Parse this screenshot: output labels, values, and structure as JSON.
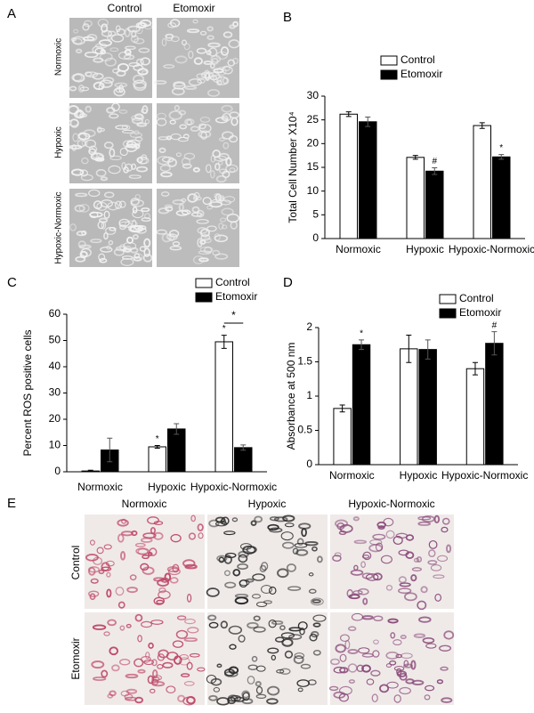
{
  "panel_a": {
    "letter": "A",
    "columns": [
      "Control",
      "Etomoxir"
    ],
    "rows": [
      "Normoxic",
      "Hypoxic",
      "Hypoxic-Normoxic"
    ]
  },
  "panel_e": {
    "letter": "E",
    "columns": [
      "Normoxic",
      "Hypoxic",
      "Hypoxic-Normoxic"
    ],
    "rows": [
      "Control",
      "Etomoxir"
    ]
  },
  "chart_data": [
    {
      "type": "bar",
      "panel": "B",
      "y_label": "Total Cell Number X10⁴",
      "categories": [
        "Normoxic",
        "Hypoxic",
        "Hypoxic-Normoxic"
      ],
      "series": [
        {
          "name": "Control",
          "color": "#ffffff",
          "values": [
            26.2,
            17.1,
            23.8
          ],
          "errors": [
            0.5,
            0.4,
            0.6
          ],
          "markers": [
            null,
            null,
            null
          ]
        },
        {
          "name": "Etomoxir",
          "color": "#000000",
          "values": [
            24.6,
            14.2,
            17.2
          ],
          "errors": [
            1.0,
            0.7,
            0.5
          ],
          "markers": [
            null,
            "#",
            "*"
          ]
        }
      ],
      "ylim": [
        0,
        30
      ],
      "yticks": [
        0,
        5,
        10,
        15,
        20,
        25,
        30
      ]
    },
    {
      "type": "bar",
      "panel": "C",
      "y_label": "Percent ROS positive cells",
      "categories": [
        "Normoxic",
        "Hypoxic",
        "Hypoxic-Normoxic"
      ],
      "series": [
        {
          "name": "Control",
          "color": "#ffffff",
          "values": [
            0.3,
            9.5,
            49.5
          ],
          "errors": [
            0.3,
            0.5,
            2.5
          ],
          "markers": [
            null,
            "*",
            "*"
          ]
        },
        {
          "name": "Etomoxir",
          "color": "#000000",
          "values": [
            8.3,
            16.3,
            9.2
          ],
          "errors": [
            4.5,
            2.0,
            1.0
          ],
          "markers": [
            null,
            null,
            null
          ]
        }
      ],
      "bracket_label": "*",
      "ylim": [
        0,
        60
      ],
      "yticks": [
        0,
        10,
        20,
        30,
        40,
        50,
        60
      ]
    },
    {
      "type": "bar",
      "panel": "D",
      "y_label": "Absorbance at 500 nm",
      "categories": [
        "Normoxic",
        "Hypoxic",
        "Hypoxic-Normoxic"
      ],
      "series": [
        {
          "name": "Control",
          "color": "#ffffff",
          "values": [
            0.82,
            1.69,
            1.4
          ],
          "errors": [
            0.05,
            0.2,
            0.09
          ],
          "markers": [
            null,
            null,
            null
          ]
        },
        {
          "name": "Etomoxir",
          "color": "#000000",
          "values": [
            1.75,
            1.68,
            1.77
          ],
          "errors": [
            0.07,
            0.14,
            0.17
          ],
          "markers": [
            "*",
            null,
            "#"
          ]
        }
      ],
      "ylim": [
        0,
        2
      ],
      "yticks": [
        0,
        0.5,
        1,
        1.5,
        2
      ]
    }
  ]
}
